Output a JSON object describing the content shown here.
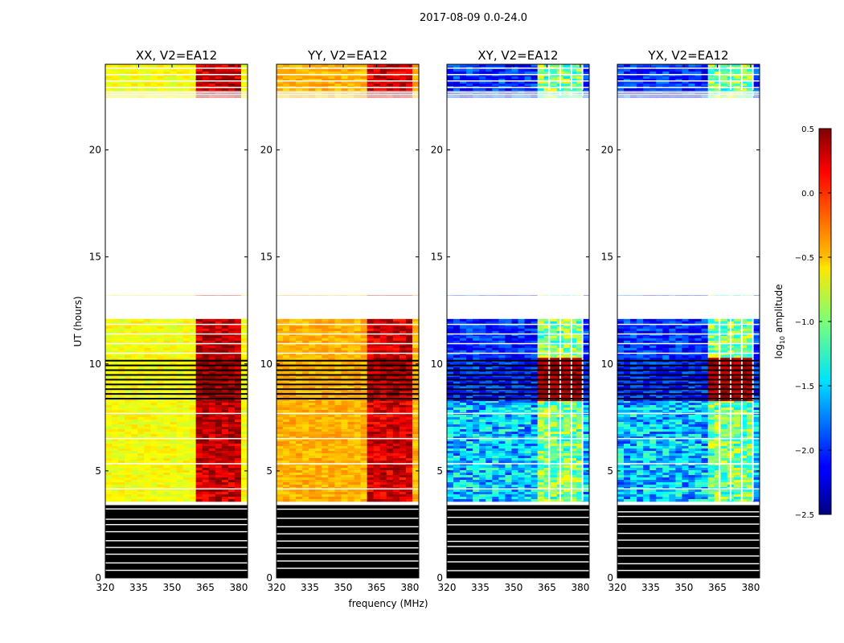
{
  "chart_data": {
    "type": "heatmap",
    "suptitle": "2017-08-09 0.0-24.0",
    "xlabel": "frequency (MHz)",
    "ylabel": "UT (hours)",
    "xlim": [
      320,
      384
    ],
    "ylim": [
      0,
      24
    ],
    "xticks": [
      320,
      335,
      350,
      365,
      380
    ],
    "yticks": [
      0,
      5,
      10,
      15,
      20
    ],
    "colorbar": {
      "label": "log10 amplitude",
      "label_base": "log",
      "label_sub": "10",
      "label_rest": " amplitude",
      "vmin": -2.5,
      "vmax": 0.5,
      "ticks": [
        0.5,
        0.0,
        -0.5,
        -1.0,
        -1.5,
        -2.0,
        -2.5
      ],
      "tick_labels": [
        "0.5",
        "0.0",
        "−0.5",
        "−1.0",
        "−1.5",
        "−2.0",
        "−2.5"
      ],
      "colormap": "jet"
    },
    "panels": [
      {
        "title": "XX, V2=EA12",
        "kind": "auto",
        "base_level": -0.65,
        "band_level": 0.3
      },
      {
        "title": "YY, V2=EA12",
        "kind": "auto",
        "base_level": -0.4,
        "band_level": 0.25
      },
      {
        "title": "XY, V2=EA12",
        "kind": "cross",
        "base_level": -2.3,
        "band_level": -1.2
      },
      {
        "title": "YX, V2=EA12",
        "kind": "cross",
        "base_level": -2.3,
        "band_level": -1.2
      }
    ],
    "bright_band_mhz": [
      [
        362,
        366
      ],
      [
        367,
        371
      ],
      [
        372,
        376
      ],
      [
        377,
        381
      ]
    ],
    "data_blocks_ut": [
      {
        "ut": [
          0.0,
          3.4
        ],
        "state": "flagged"
      },
      {
        "ut": [
          3.6,
          8.3
        ],
        "state": "data"
      },
      {
        "ut": [
          8.3,
          10.3
        ],
        "state": "dense"
      },
      {
        "ut": [
          10.3,
          12.1
        ],
        "state": "data"
      },
      {
        "ut": [
          13.1,
          13.2
        ],
        "state": "data"
      },
      {
        "ut": [
          22.5,
          22.8
        ],
        "state": "data"
      },
      {
        "ut": [
          22.8,
          24.0
        ],
        "state": "data"
      }
    ]
  },
  "colors": {
    "flagged": "#000000",
    "background": "#ffffff"
  }
}
